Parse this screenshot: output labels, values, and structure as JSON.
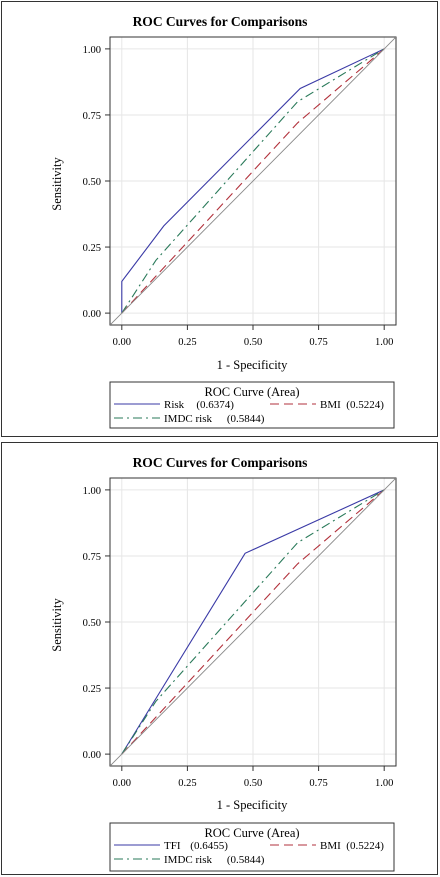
{
  "chart_data": [
    {
      "type": "line",
      "title": "ROC Curves for Comparisons",
      "xlabel": "1 - Specificity",
      "ylabel": "Sensitivity",
      "xlim": [
        0,
        1
      ],
      "ylim": [
        0,
        1
      ],
      "xticks": [
        "0.00",
        "0.25",
        "0.50",
        "0.75",
        "1.00"
      ],
      "yticks": [
        "0.00",
        "0.25",
        "0.50",
        "0.75",
        "1.00"
      ],
      "grid": true,
      "legend": {
        "title": "ROC Curve (Area)",
        "placement": "bottom",
        "entries": [
          {
            "label": "Risk",
            "area": "(0.6374)"
          },
          {
            "label": "BMI",
            "area": "(0.5224)"
          },
          {
            "label": "IMDC risk",
            "area": "(0.5844)"
          }
        ]
      },
      "series": [
        {
          "name": "Risk",
          "color": "#3a3aa6",
          "dash": "solid",
          "x": [
            0,
            0,
            0.16,
            0.68,
            1
          ],
          "y": [
            0,
            0.12,
            0.33,
            0.85,
            1
          ]
        },
        {
          "name": "BMI",
          "color": "#b2323c",
          "dash": "dashed",
          "x": [
            0,
            0.67,
            1
          ],
          "y": [
            0,
            0.72,
            1
          ]
        },
        {
          "name": "IMDC risk",
          "color": "#2a7a5a",
          "dash": "dashdot",
          "x": [
            0,
            0.13,
            0.67,
            1
          ],
          "y": [
            0,
            0.2,
            0.8,
            1
          ]
        },
        {
          "name": "",
          "color": "#888888",
          "dash": "solid",
          "reference": true,
          "x": [
            -0.05,
            1.05
          ],
          "y": [
            -0.05,
            1.05
          ]
        }
      ]
    },
    {
      "type": "line",
      "title": "ROC Curves for Comparisons",
      "xlabel": "1 - Specificity",
      "ylabel": "Sensitivity",
      "xlim": [
        0,
        1
      ],
      "ylim": [
        0,
        1
      ],
      "xticks": [
        "0.00",
        "0.25",
        "0.50",
        "0.75",
        "1.00"
      ],
      "yticks": [
        "0.00",
        "0.25",
        "0.50",
        "0.75",
        "1.00"
      ],
      "grid": true,
      "legend": {
        "title": "ROC Curve (Area)",
        "placement": "bottom",
        "entries": [
          {
            "label": "TFI",
            "area": "(0.6455)"
          },
          {
            "label": "BMI",
            "area": "(0.5224)"
          },
          {
            "label": "IMDC risk",
            "area": "(0.5844)"
          }
        ]
      },
      "series": [
        {
          "name": "TFI",
          "color": "#3a3aa6",
          "dash": "solid",
          "x": [
            0,
            0.47,
            1
          ],
          "y": [
            0,
            0.76,
            1
          ]
        },
        {
          "name": "BMI",
          "color": "#b2323c",
          "dash": "dashed",
          "x": [
            0,
            0.67,
            1
          ],
          "y": [
            0,
            0.72,
            1
          ]
        },
        {
          "name": "IMDC risk",
          "color": "#2a7a5a",
          "dash": "dashdot",
          "x": [
            0,
            0.13,
            0.67,
            1
          ],
          "y": [
            0,
            0.2,
            0.8,
            1
          ]
        },
        {
          "name": "",
          "color": "#888888",
          "dash": "solid",
          "reference": true,
          "x": [
            -0.05,
            1.05
          ],
          "y": [
            -0.05,
            1.05
          ]
        }
      ]
    }
  ]
}
